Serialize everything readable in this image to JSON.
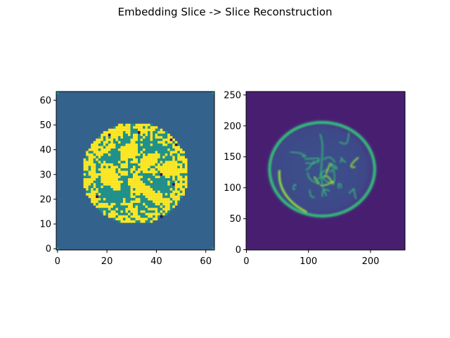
{
  "figure": {
    "suptitle": "Embedding Slice -> Slice Reconstruction"
  },
  "chart_data": [
    {
      "type": "heatmap",
      "title": "",
      "xlabel": "",
      "ylabel": "",
      "xlim": [
        -0.5,
        63.5
      ],
      "ylim": [
        63.5,
        -0.5
      ],
      "grid": false,
      "legend": "none",
      "colormap": "viridis",
      "image_shape": [
        64,
        64
      ],
      "xticks": [
        0,
        20,
        40,
        60
      ],
      "yticks": [
        0,
        10,
        20,
        30,
        40,
        50,
        60
      ],
      "xtick_labels": [
        "0",
        "20",
        "40",
        "60"
      ],
      "ytick_labels": [
        "0",
        "10",
        "20",
        "30",
        "40",
        "50",
        "60"
      ],
      "colors": {
        "background": "#33638d",
        "tissue": "#21918c",
        "bright": "#fde725",
        "dark_spot": "#440154"
      },
      "brain_ellipse": {
        "center": [
          31.5,
          32.5
        ],
        "radius_x": 21.5,
        "radius_y": 20.5
      }
    },
    {
      "type": "heatmap",
      "title": "",
      "xlabel": "",
      "ylabel": "",
      "xlim": [
        -0.5,
        255.5
      ],
      "ylim": [
        255.5,
        -0.5
      ],
      "grid": false,
      "legend": "none",
      "colormap": "viridis",
      "image_shape": [
        256,
        256
      ],
      "xticks": [
        0,
        100,
        200
      ],
      "yticks": [
        0,
        50,
        100,
        150,
        200,
        250
      ],
      "xtick_labels": [
        "0",
        "100",
        "200"
      ],
      "ytick_labels": [
        "0",
        "50",
        "100",
        "150",
        "200",
        "250"
      ],
      "colors": {
        "background": "#481f70",
        "tissue": "#3e4989",
        "edge": "#35b779",
        "peak": "#90d743"
      },
      "brain_ellipse": {
        "center": [
          122,
          130
        ],
        "radius_x": 88,
        "radius_y": 79
      }
    }
  ]
}
